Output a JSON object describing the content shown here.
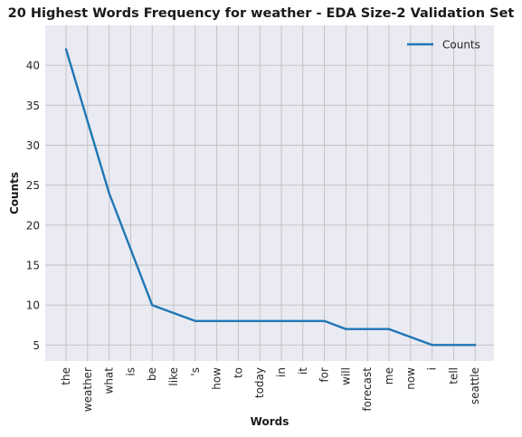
{
  "chart_data": {
    "type": "line",
    "title": "20 Highest Words Frequency for weather - EDA Size-2 Validation Set",
    "xlabel": "Words",
    "ylabel": "Counts",
    "categories": [
      "the",
      "weather",
      "what",
      "is",
      "be",
      "like",
      "'s",
      "how",
      "to",
      "today",
      "in",
      "it",
      "for",
      "will",
      "forecast",
      "me",
      "now",
      "i",
      "tell",
      "seattle"
    ],
    "series": [
      {
        "name": "Counts",
        "color": "#1f77b4",
        "values": [
          42,
          33,
          24,
          17,
          10,
          9,
          8,
          8,
          8,
          8,
          8,
          8,
          8,
          7,
          7,
          7,
          6,
          5,
          5,
          5
        ]
      }
    ],
    "ylim": [
      3,
      45
    ],
    "yticks": [
      5,
      10,
      15,
      20,
      25,
      30,
      35,
      40
    ],
    "grid": true,
    "legend": "top-right",
    "background_color": "#eaeaf2",
    "grid_color": "#c0c0c0"
  }
}
